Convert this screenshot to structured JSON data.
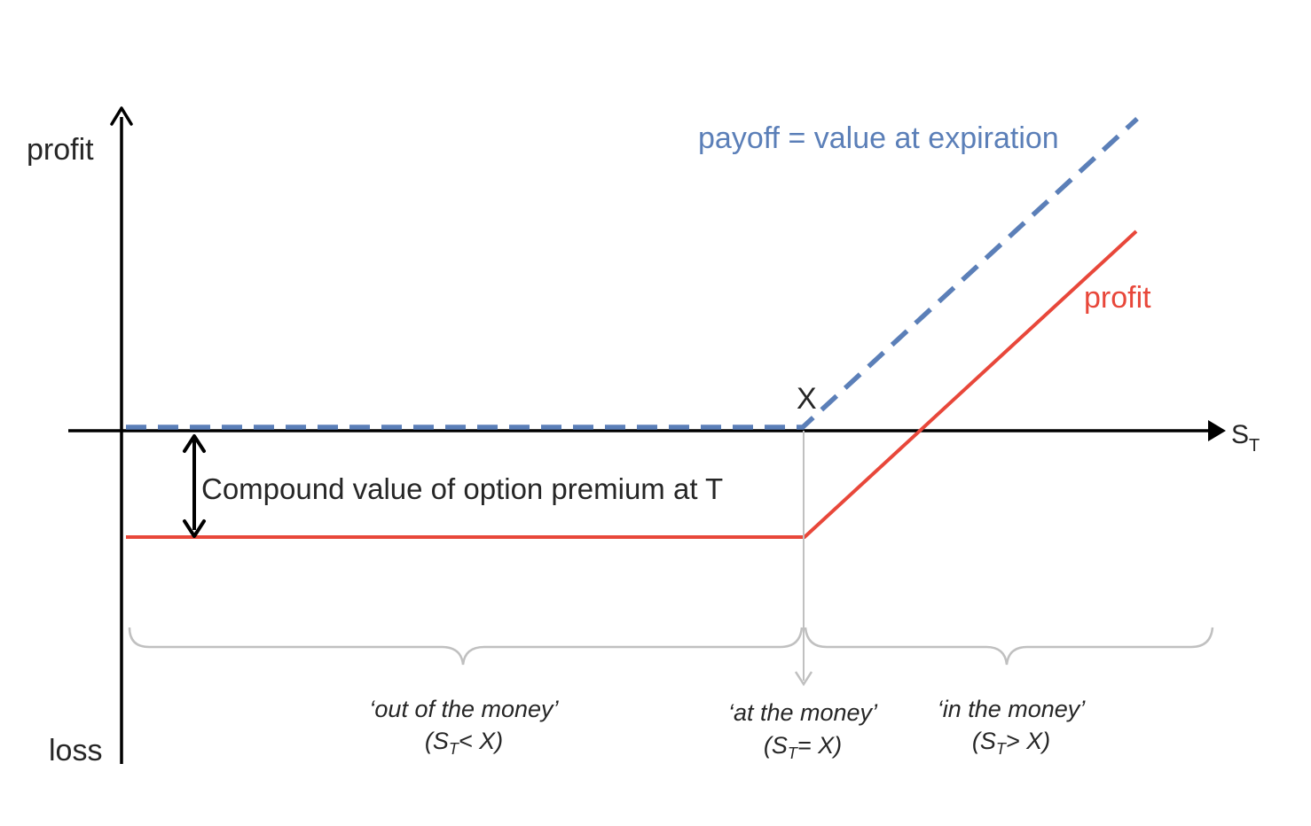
{
  "diagram": {
    "axes": {
      "y_top_label": "profit",
      "y_bottom_label": "loss",
      "x_label_main": "S",
      "x_label_sub": "T"
    },
    "strike_label": "X",
    "payoff_label": "payoff = value at expiration",
    "profit_label": "profit",
    "premium_label": "Compound value of option premium at T",
    "regions": {
      "out": {
        "title": "‘out of the money’",
        "cond_open": "(S",
        "cond_sub": "T",
        "cond_close": "< X)"
      },
      "at": {
        "title": "‘at the money’",
        "cond_open": "(S",
        "cond_sub": "T",
        "cond_close": "= X)"
      },
      "in": {
        "title": "‘in the money’",
        "cond_open": "(S",
        "cond_sub": "T",
        "cond_close": "> X)"
      }
    },
    "colors": {
      "axis": "#000000",
      "payoff": "#5b7fb8",
      "profit": "#e8473a",
      "brace": "#c0c0c0",
      "text": "#262626"
    }
  }
}
